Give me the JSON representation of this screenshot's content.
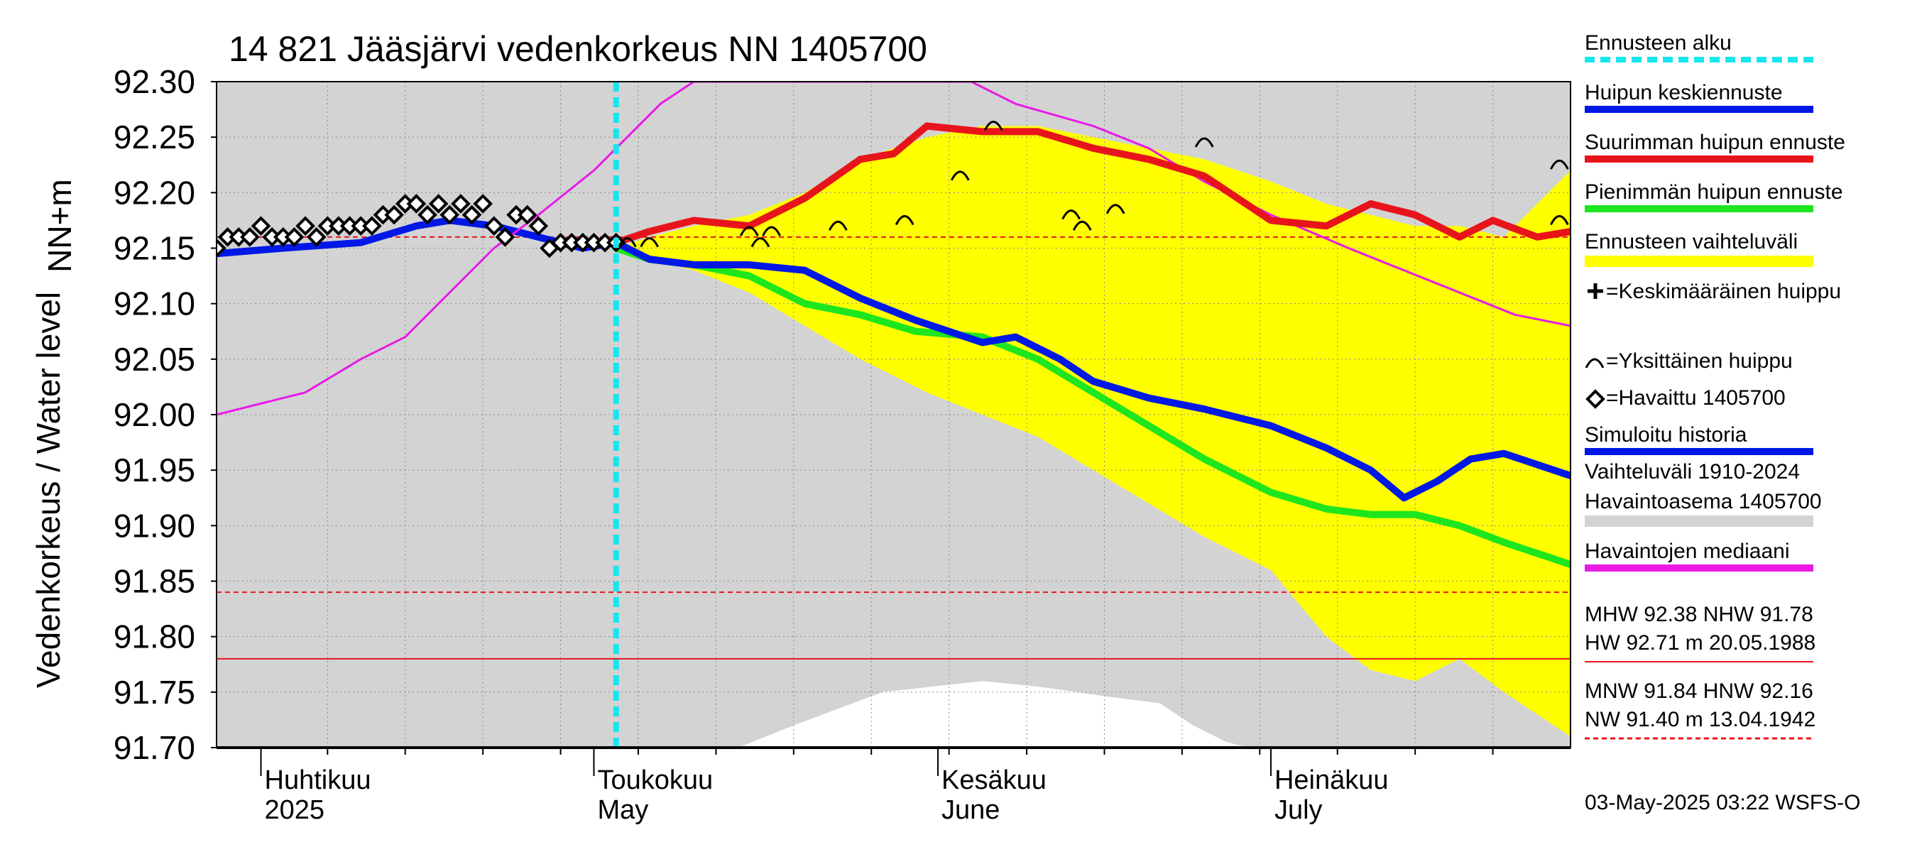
{
  "chart_data": {
    "type": "line",
    "title": "14 821 Jääsjärvi vedenkorkeus NN 1405700",
    "ylabel_right": "NN+m",
    "ylabel": "Vedenkorkeus / Water level",
    "ylim": [
      91.7,
      92.3
    ],
    "yticks": [
      "92.30",
      "92.25",
      "92.20",
      "92.15",
      "92.10",
      "92.05",
      "92.00",
      "91.95",
      "91.90",
      "91.85",
      "91.80",
      "91.75",
      "91.70"
    ],
    "x_range": [
      "2025-03-28",
      "2025-07-28"
    ],
    "month_ticks": [
      {
        "date": "2025-04-01",
        "fi": "Huhtikuu",
        "en": "2025"
      },
      {
        "date": "2025-05-01",
        "fi": "Toukokuu",
        "en": "May"
      },
      {
        "date": "2025-06-01",
        "fi": "Kesäkuu",
        "en": "June"
      },
      {
        "date": "2025-07-01",
        "fi": "Heinäkuu",
        "en": "July"
      }
    ],
    "forecast_start": "2025-05-03",
    "grid": true,
    "reference_lines": [
      {
        "name": "MNW",
        "value": 91.84,
        "style": "dashed",
        "color": "#e8141c"
      },
      {
        "name": "NHW",
        "value": 91.78,
        "style": "solid",
        "color": "#e8141c"
      },
      {
        "name": "HNW",
        "value": 92.16,
        "style": "dashed",
        "color": "#e8141c"
      }
    ],
    "historical_range": {
      "x": [
        "2025-03-28",
        "2025-05-01",
        "2025-05-18",
        "2025-06-01",
        "2025-06-15",
        "2025-06-26",
        "2025-07-01",
        "2025-07-15",
        "2025-07-28"
      ],
      "low": [
        91.7,
        91.7,
        91.7,
        91.72,
        91.72,
        91.7,
        91.7,
        91.7,
        91.7
      ],
      "high": [
        92.3,
        92.3,
        92.3,
        92.3,
        92.3,
        92.3,
        92.3,
        92.3,
        92.3
      ]
    },
    "observed_white_area": {
      "x": [
        "2025-05-14",
        "2025-05-19",
        "2025-05-23",
        "2025-05-27",
        "2025-06-05",
        "2025-06-10",
        "2025-06-17",
        "2025-06-21",
        "2025-06-24",
        "2025-06-27",
        "2025-06-29"
      ],
      "top": [
        91.7,
        91.72,
        91.735,
        91.75,
        91.76,
        91.755,
        91.745,
        91.74,
        91.72,
        91.705,
        91.7
      ]
    },
    "forecast_range": {
      "x": [
        "2025-05-03",
        "2025-05-06",
        "2025-05-10",
        "2025-05-15",
        "2025-05-20",
        "2025-05-25",
        "2025-05-31",
        "2025-06-05",
        "2025-06-10",
        "2025-06-15",
        "2025-06-20",
        "2025-06-25",
        "2025-07-01",
        "2025-07-06",
        "2025-07-10",
        "2025-07-14",
        "2025-07-18",
        "2025-07-22",
        "2025-07-28"
      ],
      "low": [
        92.15,
        92.14,
        92.13,
        92.11,
        92.08,
        92.05,
        92.02,
        92.0,
        91.98,
        91.95,
        91.92,
        91.89,
        91.86,
        91.8,
        91.77,
        91.76,
        91.78,
        91.75,
        91.71
      ],
      "high": [
        92.15,
        92.16,
        92.17,
        92.18,
        92.2,
        92.23,
        92.25,
        92.26,
        92.26,
        92.25,
        92.24,
        92.23,
        92.21,
        92.19,
        92.18,
        92.17,
        92.17,
        92.16,
        92.22
      ]
    },
    "series": [
      {
        "name": "Havaittu 1405700",
        "marker": "diamond",
        "color": "#000000",
        "x": [
          "2025-03-28",
          "2025-03-29",
          "2025-03-30",
          "2025-03-31",
          "2025-04-01",
          "2025-04-02",
          "2025-04-03",
          "2025-04-04",
          "2025-04-05",
          "2025-04-06",
          "2025-04-07",
          "2025-04-08",
          "2025-04-09",
          "2025-04-10",
          "2025-04-11",
          "2025-04-12",
          "2025-04-13",
          "2025-04-14",
          "2025-04-15",
          "2025-04-16",
          "2025-04-17",
          "2025-04-18",
          "2025-04-19",
          "2025-04-20",
          "2025-04-21",
          "2025-04-22",
          "2025-04-23",
          "2025-04-24",
          "2025-04-25",
          "2025-04-26",
          "2025-04-27",
          "2025-04-28",
          "2025-04-29",
          "2025-04-30",
          "2025-05-01",
          "2025-05-02",
          "2025-05-03"
        ],
        "values": [
          92.15,
          92.16,
          92.16,
          92.16,
          92.17,
          92.16,
          92.16,
          92.16,
          92.17,
          92.16,
          92.17,
          92.17,
          92.17,
          92.17,
          92.17,
          92.18,
          92.18,
          92.19,
          92.19,
          92.18,
          92.19,
          92.18,
          92.19,
          92.18,
          92.19,
          92.17,
          92.16,
          92.18,
          92.18,
          92.17,
          92.15,
          92.155,
          92.155,
          92.155,
          92.155,
          92.155,
          92.155
        ]
      },
      {
        "name": "Simuloitu historia",
        "color": "#0018e6",
        "x": [
          "2025-03-28",
          "2025-04-03",
          "2025-04-10",
          "2025-04-15",
          "2025-04-18",
          "2025-04-22",
          "2025-04-26",
          "2025-04-30",
          "2025-05-03"
        ],
        "values": [
          92.145,
          92.15,
          92.155,
          92.17,
          92.175,
          92.17,
          92.16,
          92.15,
          92.155
        ]
      },
      {
        "name": "Havaintojen mediaani",
        "color": "#e81ae8",
        "x": [
          "2025-03-28",
          "2025-04-01",
          "2025-04-05",
          "2025-04-10",
          "2025-04-14",
          "2025-04-18",
          "2025-04-22",
          "2025-04-26",
          "2025-05-01",
          "2025-05-04",
          "2025-05-07",
          "2025-05-10",
          "2025-05-15",
          "2025-06-04",
          "2025-06-08",
          "2025-06-15",
          "2025-06-20",
          "2025-06-25",
          "2025-07-01",
          "2025-07-08",
          "2025-07-13",
          "2025-07-18",
          "2025-07-23",
          "2025-07-28"
        ],
        "values": [
          92.0,
          92.01,
          92.02,
          92.05,
          92.07,
          92.11,
          92.15,
          92.18,
          92.22,
          92.25,
          92.28,
          92.3,
          92.3,
          92.3,
          92.28,
          92.26,
          92.24,
          92.21,
          92.18,
          92.15,
          92.13,
          92.11,
          92.09,
          92.08
        ]
      },
      {
        "name": "Pienimmän huipun ennuste",
        "color": "#1ee61e",
        "x": [
          "2025-05-03",
          "2025-05-06",
          "2025-05-10",
          "2025-05-15",
          "2025-05-20",
          "2025-05-25",
          "2025-05-30",
          "2025-06-05",
          "2025-06-10",
          "2025-06-15",
          "2025-06-20",
          "2025-06-25",
          "2025-07-01",
          "2025-07-06",
          "2025-07-10",
          "2025-07-14",
          "2025-07-18",
          "2025-07-22",
          "2025-07-25",
          "2025-07-28"
        ],
        "values": [
          92.15,
          92.14,
          92.135,
          92.125,
          92.1,
          92.09,
          92.075,
          92.07,
          92.05,
          92.02,
          91.99,
          91.96,
          91.93,
          91.915,
          91.91,
          91.91,
          91.9,
          91.885,
          91.875,
          91.865
        ]
      },
      {
        "name": "Huipun keskiennuste",
        "color": "#0018e6",
        "x": [
          "2025-05-03",
          "2025-05-06",
          "2025-05-10",
          "2025-05-15",
          "2025-05-20",
          "2025-05-25",
          "2025-05-30",
          "2025-06-05",
          "2025-06-08",
          "2025-06-12",
          "2025-06-15",
          "2025-06-20",
          "2025-06-25",
          "2025-07-01",
          "2025-07-06",
          "2025-07-10",
          "2025-07-13",
          "2025-07-16",
          "2025-07-19",
          "2025-07-22",
          "2025-07-25",
          "2025-07-28"
        ],
        "values": [
          92.155,
          92.14,
          92.135,
          92.135,
          92.13,
          92.105,
          92.085,
          92.065,
          92.07,
          92.05,
          92.03,
          92.015,
          92.005,
          91.99,
          91.97,
          91.95,
          91.925,
          91.94,
          91.96,
          91.965,
          91.955,
          91.945
        ]
      },
      {
        "name": "Suurimman huipun ennuste",
        "color": "#e8141c",
        "x": [
          "2025-05-03",
          "2025-05-06",
          "2025-05-10",
          "2025-05-15",
          "2025-05-20",
          "2025-05-25",
          "2025-05-28",
          "2025-05-31",
          "2025-06-05",
          "2025-06-10",
          "2025-06-15",
          "2025-06-20",
          "2025-06-25",
          "2025-07-01",
          "2025-07-06",
          "2025-07-10",
          "2025-07-14",
          "2025-07-18",
          "2025-07-21",
          "2025-07-25",
          "2025-07-28"
        ],
        "values": [
          92.155,
          92.165,
          92.175,
          92.17,
          92.195,
          92.23,
          92.235,
          92.26,
          92.255,
          92.255,
          92.24,
          92.23,
          92.215,
          92.175,
          92.17,
          92.19,
          92.18,
          92.16,
          92.175,
          92.16,
          92.165
        ]
      }
    ],
    "individual_peaks": {
      "x": [
        "2025-05-04",
        "2025-05-06",
        "2025-05-15",
        "2025-05-16",
        "2025-05-17",
        "2025-05-23",
        "2025-05-29",
        "2025-06-03",
        "2025-06-06",
        "2025-06-13",
        "2025-06-14",
        "2025-06-17",
        "2025-06-25",
        "2025-07-27",
        "2025-07-27"
      ],
      "values": [
        92.155,
        92.155,
        92.165,
        92.155,
        92.165,
        92.17,
        92.175,
        92.215,
        92.26,
        92.18,
        92.17,
        92.185,
        92.245,
        92.225,
        92.175
      ]
    },
    "legend": {
      "placement": "right",
      "items": [
        {
          "label": "Ennusteen alku",
          "color": "#16e6f0",
          "style": "dotted"
        },
        {
          "label": "Huipun keskiennuste",
          "color": "#0018e6",
          "style": "solid"
        },
        {
          "label": "Suurimman huipun ennuste",
          "color": "#e8141c",
          "style": "solid"
        },
        {
          "label": "Pienimmän huipun ennuste",
          "color": "#1ee61e",
          "style": "solid"
        },
        {
          "label": "Ennusteen vaihteluväli",
          "color": "#ffff00",
          "style": "band"
        },
        {
          "label": "=Keskimääräinen huippu",
          "color": "#000000",
          "style": "plus"
        },
        {
          "label": "=Yksittäinen huippu",
          "color": "#000000",
          "style": "arc"
        },
        {
          "label": "=Havaittu 1405700",
          "color": "#000000",
          "style": "diamond"
        },
        {
          "label": "Simuloitu historia",
          "color": "#0018e6",
          "style": "solid"
        },
        {
          "label": "Vaihteluväli 1910-2024",
          "color": "#d3d3d3",
          "style": "none"
        },
        {
          "label": " Havaintoasema 1405700",
          "color": "#d3d3d3",
          "style": "band"
        },
        {
          "label": "Havaintojen mediaani",
          "color": "#e81ae8",
          "style": "solid"
        }
      ],
      "stats": {
        "row1": "MHW  92.38 NHW  91.78",
        "row2": "HW  92.71 m 20.05.1988",
        "row3": "MNW  91.84 HNW  92.16",
        "row4": "NW  91.40 m 13.04.1942"
      }
    },
    "timestamp": "03-May-2025 03:22 WSFS-O"
  }
}
